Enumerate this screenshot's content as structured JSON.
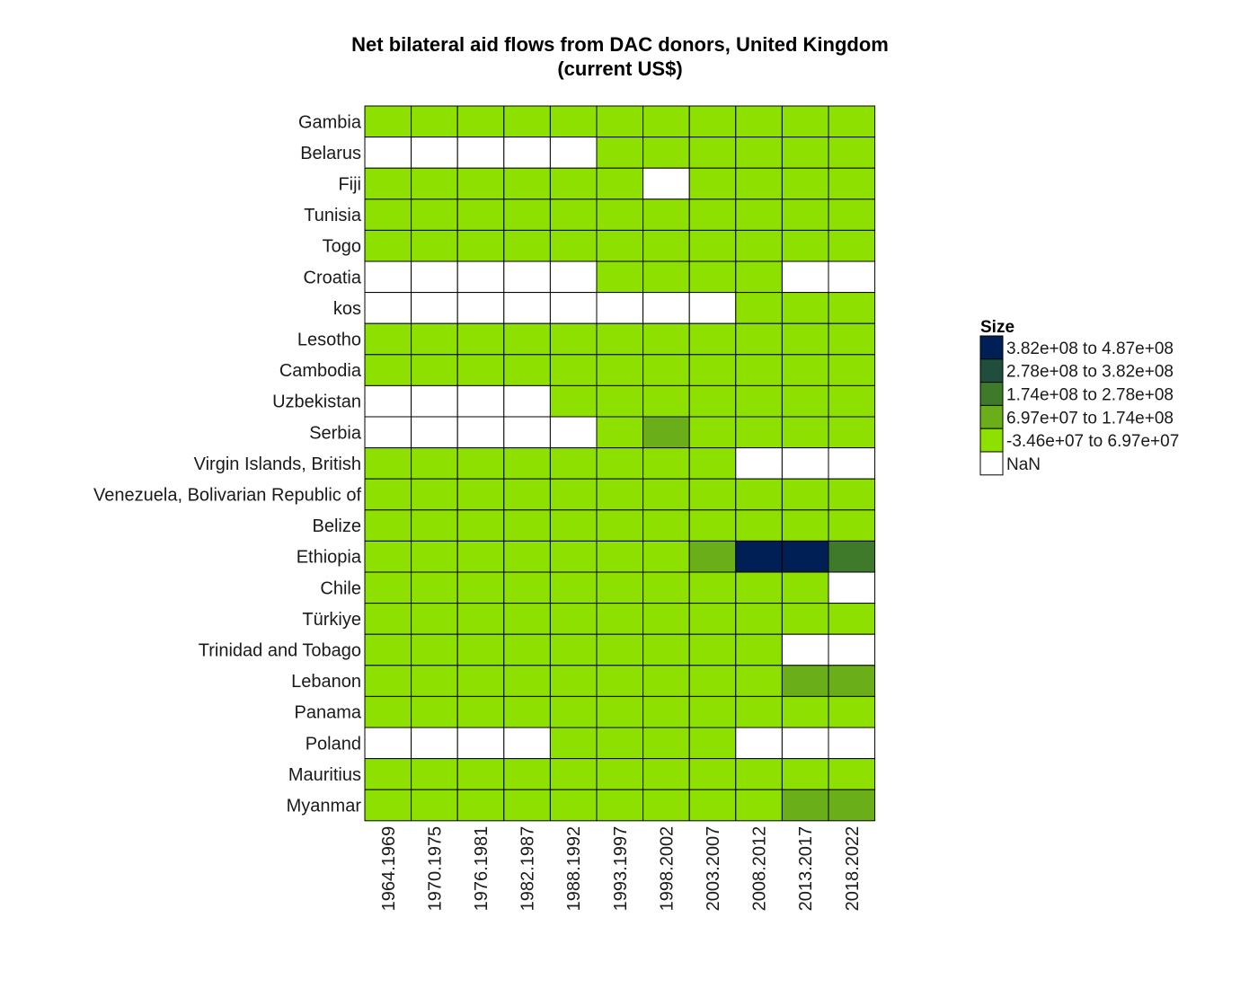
{
  "chart_data": {
    "type": "heatmap",
    "title": [
      "Net bilateral aid flows from DAC donors, United Kingdom",
      "(current US$)"
    ],
    "columns": [
      "1964.1969",
      "1970.1975",
      "1976.1981",
      "1982.1987",
      "1988.1992",
      "1993.1997",
      "1998.2002",
      "2003.2007",
      "2008.2012",
      "2013.2017",
      "2018.2022"
    ],
    "rows": [
      "Gambia",
      "Belarus",
      "Fiji",
      "Tunisia",
      "Togo",
      "Croatia",
      "kos",
      "Lesotho",
      "Cambodia",
      "Uzbekistan",
      "Serbia",
      "Virgin Islands, British",
      "Venezuela, Bolivarian Republic of",
      "Belize",
      "Ethiopia",
      "Chile",
      "Türkiye",
      "Trinidad and Tobago",
      "Lebanon",
      "Panama",
      "Poland",
      "Mauritius",
      "Myanmar"
    ],
    "bin_note": "cell values are legend bin indices: 0 = NaN, 1 = lowest bin ... 5 = highest bin",
    "cells": [
      [
        1,
        1,
        1,
        1,
        1,
        1,
        1,
        1,
        1,
        1,
        1
      ],
      [
        0,
        0,
        0,
        0,
        0,
        1,
        1,
        1,
        1,
        1,
        1
      ],
      [
        1,
        1,
        1,
        1,
        1,
        1,
        0,
        1,
        1,
        1,
        1
      ],
      [
        1,
        1,
        1,
        1,
        1,
        1,
        1,
        1,
        1,
        1,
        1
      ],
      [
        1,
        1,
        1,
        1,
        1,
        1,
        1,
        1,
        1,
        1,
        1
      ],
      [
        0,
        0,
        0,
        0,
        0,
        1,
        1,
        1,
        1,
        0,
        0
      ],
      [
        0,
        0,
        0,
        0,
        0,
        0,
        0,
        0,
        1,
        1,
        1
      ],
      [
        1,
        1,
        1,
        1,
        1,
        1,
        1,
        1,
        1,
        1,
        1
      ],
      [
        1,
        1,
        1,
        1,
        1,
        1,
        1,
        1,
        1,
        1,
        1
      ],
      [
        0,
        0,
        0,
        0,
        1,
        1,
        1,
        1,
        1,
        1,
        1
      ],
      [
        0,
        0,
        0,
        0,
        0,
        1,
        2,
        1,
        1,
        1,
        1
      ],
      [
        1,
        1,
        1,
        1,
        1,
        1,
        1,
        1,
        0,
        0,
        0
      ],
      [
        1,
        1,
        1,
        1,
        1,
        1,
        1,
        1,
        1,
        1,
        1
      ],
      [
        1,
        1,
        1,
        1,
        1,
        1,
        1,
        1,
        1,
        1,
        1
      ],
      [
        1,
        1,
        1,
        1,
        1,
        1,
        1,
        2,
        5,
        5,
        3
      ],
      [
        1,
        1,
        1,
        1,
        1,
        1,
        1,
        1,
        1,
        1,
        0
      ],
      [
        1,
        1,
        1,
        1,
        1,
        1,
        1,
        1,
        1,
        1,
        1
      ],
      [
        1,
        1,
        1,
        1,
        1,
        1,
        1,
        1,
        1,
        0,
        0
      ],
      [
        1,
        1,
        1,
        1,
        1,
        1,
        1,
        1,
        1,
        2,
        2
      ],
      [
        1,
        1,
        1,
        1,
        1,
        1,
        1,
        1,
        1,
        1,
        1
      ],
      [
        0,
        0,
        0,
        0,
        1,
        1,
        1,
        1,
        0,
        0,
        0
      ],
      [
        1,
        1,
        1,
        1,
        1,
        1,
        1,
        1,
        1,
        1,
        1
      ],
      [
        1,
        1,
        1,
        1,
        1,
        1,
        1,
        1,
        1,
        2,
        2
      ]
    ],
    "legend": {
      "title": "Size",
      "bins": [
        {
          "label": "3.82e+08  to  4.87e+08",
          "color": "#001f54"
        },
        {
          "label": "2.78e+08  to  3.82e+08",
          "color": "#1f4e3d"
        },
        {
          "label": "1.74e+08  to  2.78e+08",
          "color": "#3f7a2a"
        },
        {
          "label": "6.97e+07  to  1.74e+08",
          "color": "#6aae1a"
        },
        {
          "label": "-3.46e+07  to  6.97e+07",
          "color": "#8ee000"
        },
        {
          "label": "NaN",
          "color": "#ffffff"
        }
      ]
    }
  }
}
